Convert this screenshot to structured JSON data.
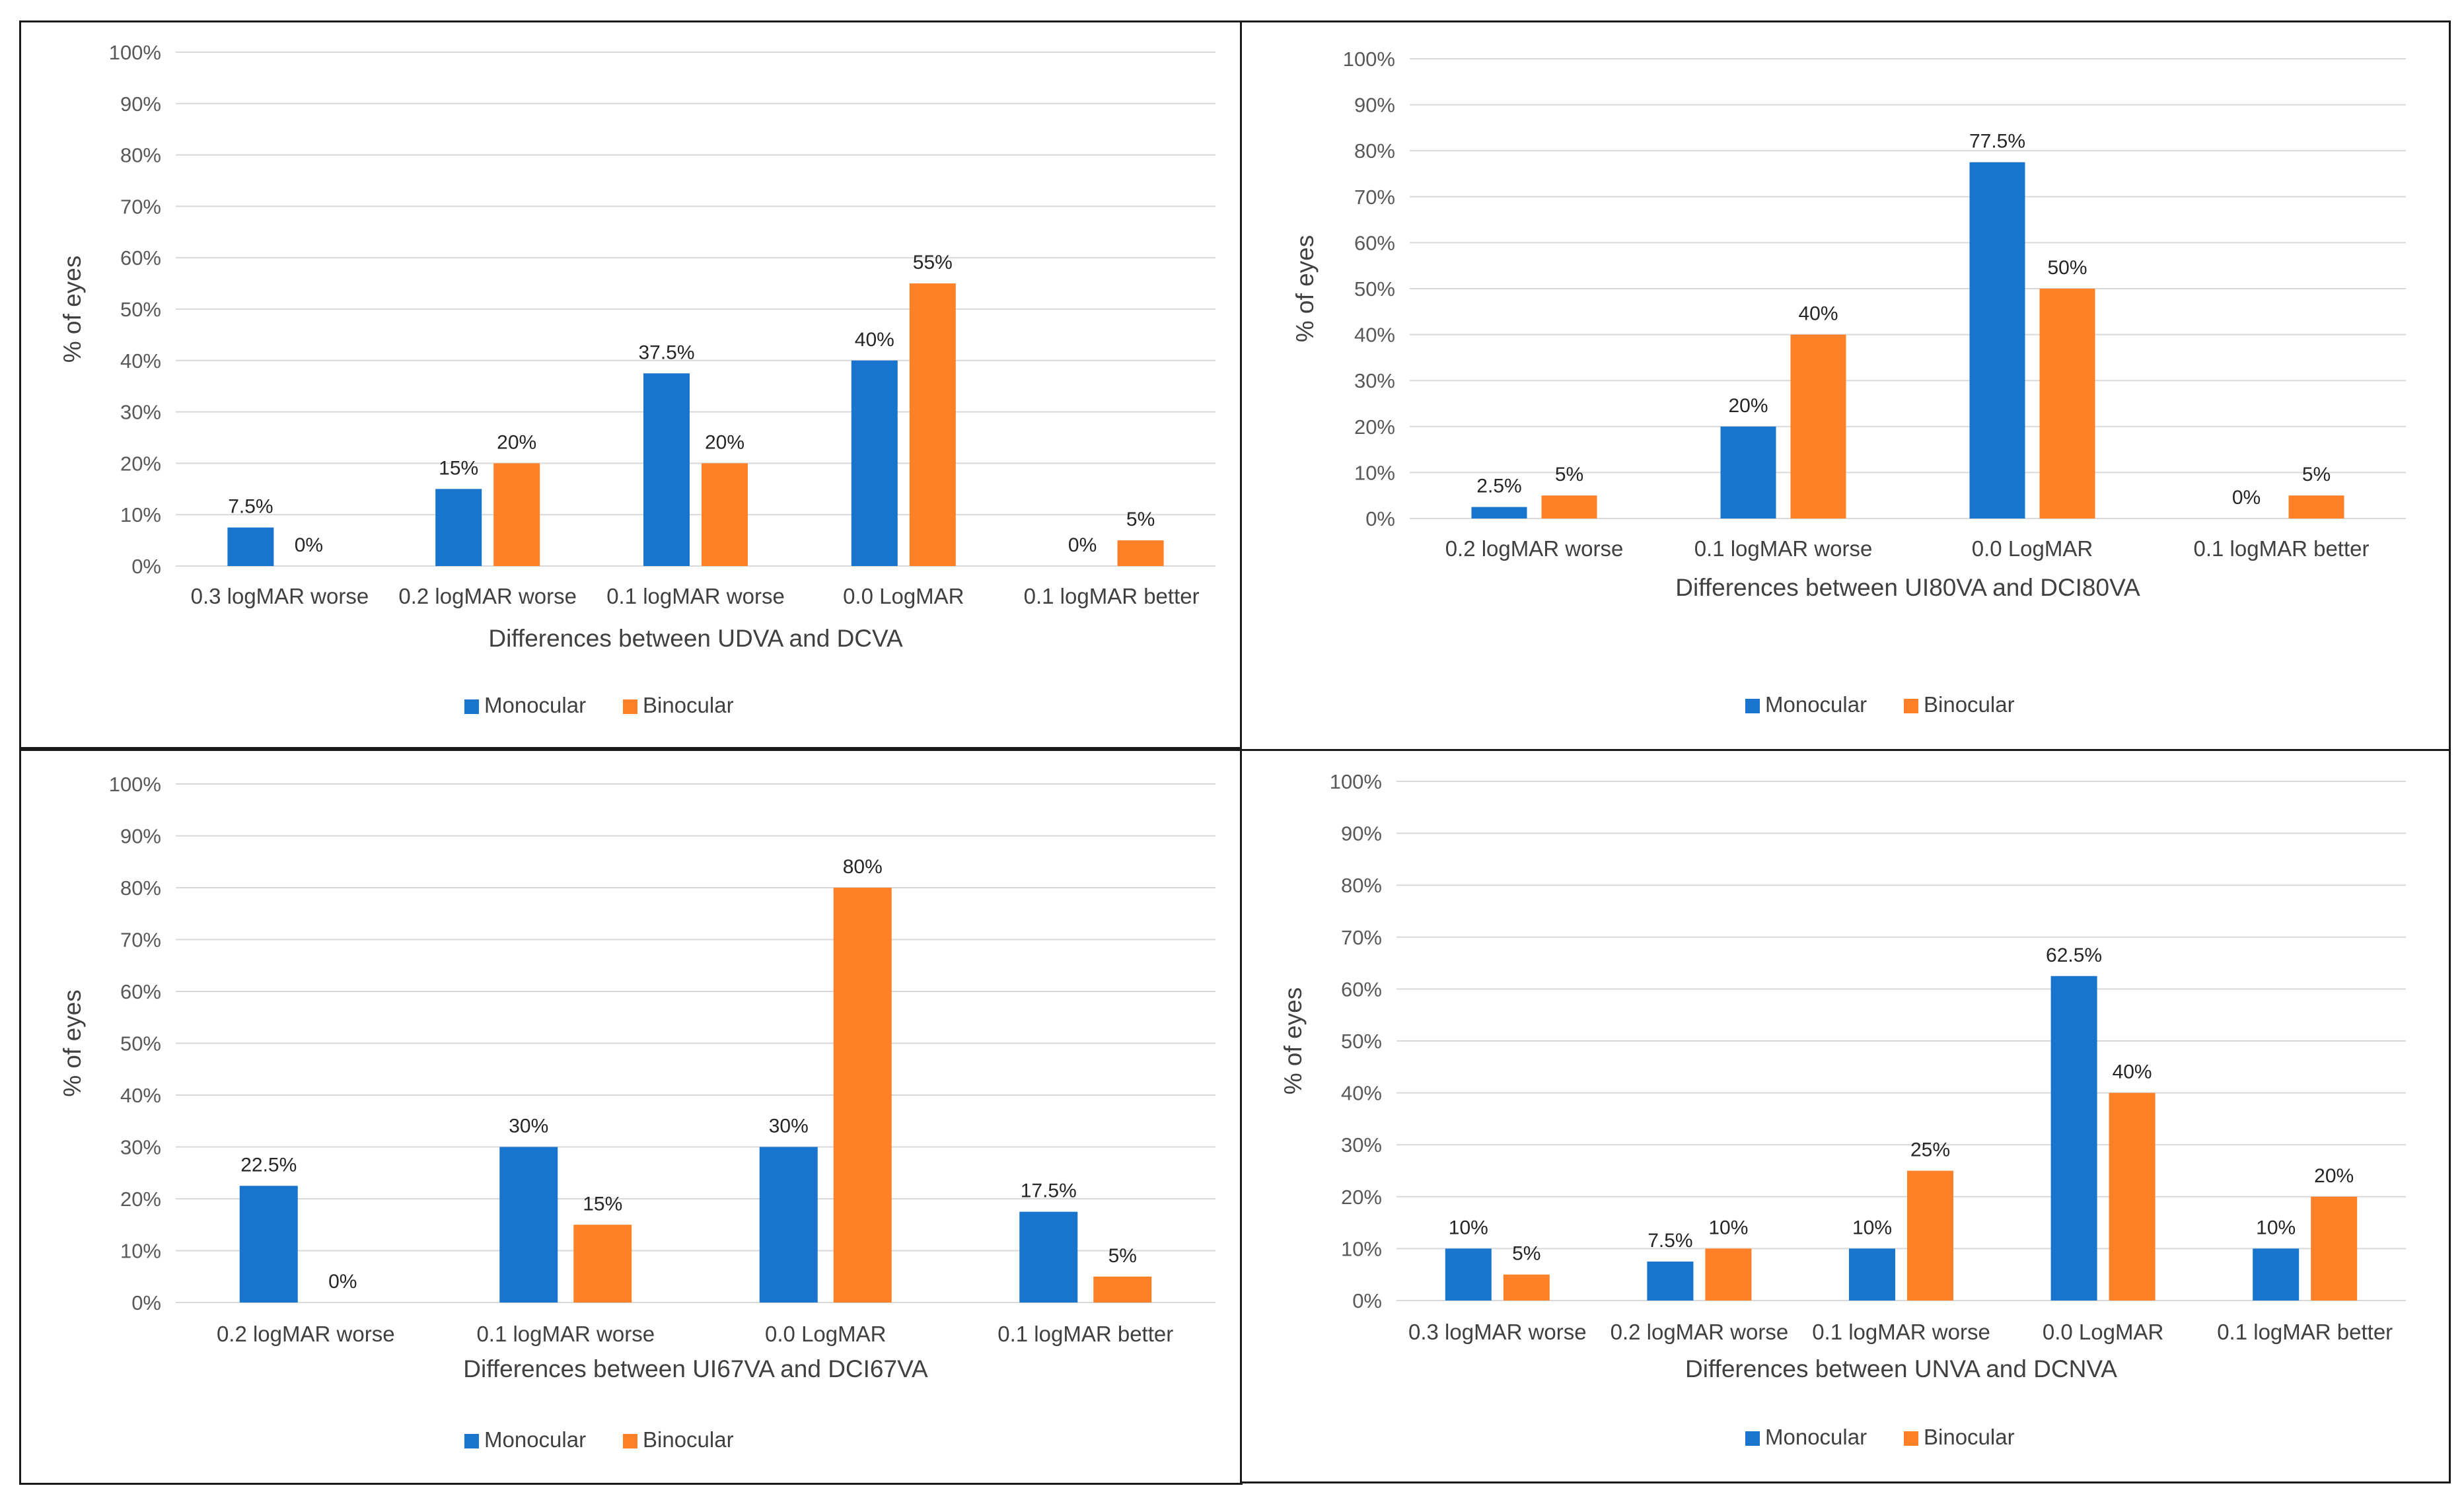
{
  "colors": {
    "monocular": "#1874CD",
    "binocular": "#FF8027"
  },
  "legend": [
    "Monocular",
    "Binocular"
  ],
  "chart_data": [
    {
      "type": "bar",
      "position": "top-left",
      "title": "",
      "xlabel": "Differences between  UDVA and DCVA",
      "ylabel": "% of eyes",
      "ylim": [
        0,
        100
      ],
      "yticks": [
        "0%",
        "10%",
        "20%",
        "30%",
        "40%",
        "50%",
        "60%",
        "70%",
        "80%",
        "90%",
        "100%"
      ],
      "categories": [
        "0.3 logMAR worse",
        "0.2 logMAR worse",
        "0.1 logMAR worse",
        "0.0 LogMAR",
        "0.1 logMAR better"
      ],
      "series": [
        {
          "name": "Monocular",
          "values": [
            7.5,
            15,
            37.5,
            40,
            0
          ],
          "labels": [
            "7.5%",
            "15%",
            "37.5%",
            "40%",
            "0%"
          ]
        },
        {
          "name": "Binocular",
          "values": [
            0,
            20,
            20,
            55,
            5
          ],
          "labels": [
            "0%",
            "20%",
            "20%",
            "55%",
            "5%"
          ]
        }
      ],
      "grid": true,
      "legend_placement": "bottom"
    },
    {
      "type": "bar",
      "position": "top-right",
      "title": "",
      "xlabel": "Differences between UI80VA and DCI80VA",
      "ylabel": "% of eyes",
      "ylim": [
        0,
        100
      ],
      "yticks": [
        "0%",
        "10%",
        "20%",
        "30%",
        "40%",
        "50%",
        "60%",
        "70%",
        "80%",
        "90%",
        "100%"
      ],
      "categories": [
        "0.2 logMAR worse",
        "0.1 logMAR worse",
        "0.0 LogMAR",
        "0.1 logMAR better"
      ],
      "series": [
        {
          "name": "Monocular",
          "values": [
            2.5,
            20,
            77.5,
            0
          ],
          "labels": [
            "2.5%",
            "20%",
            "77.5%",
            "0%"
          ]
        },
        {
          "name": "Binocular",
          "values": [
            5,
            40,
            50,
            5
          ],
          "labels": [
            "5%",
            "40%",
            "50%",
            "5%"
          ]
        }
      ],
      "grid": true,
      "legend_placement": "bottom"
    },
    {
      "type": "bar",
      "position": "bottom-left",
      "title": "",
      "xlabel": "Differences between UI67VA and DCI67VA",
      "ylabel": "% of eyes",
      "ylim": [
        0,
        100
      ],
      "yticks": [
        "0%",
        "10%",
        "20%",
        "30%",
        "40%",
        "50%",
        "60%",
        "70%",
        "80%",
        "90%",
        "100%"
      ],
      "categories": [
        "0.2 logMAR worse",
        "0.1 logMAR worse",
        "0.0 LogMAR",
        "0.1 logMAR better"
      ],
      "series": [
        {
          "name": "Monocular",
          "values": [
            22.5,
            30,
            30,
            17.5
          ],
          "labels": [
            "22.5%",
            "30%",
            "30%",
            "17.5%"
          ]
        },
        {
          "name": "Binocular",
          "values": [
            0,
            15,
            80,
            5
          ],
          "labels": [
            "0%",
            "15%",
            "80%",
            "5%"
          ]
        }
      ],
      "grid": true,
      "legend_placement": "bottom"
    },
    {
      "type": "bar",
      "position": "bottom-right",
      "title": "",
      "xlabel": "Differences between UNVA and DCNVA",
      "ylabel": "% of eyes",
      "ylim": [
        0,
        100
      ],
      "yticks": [
        "0%",
        "10%",
        "20%",
        "30%",
        "40%",
        "50%",
        "60%",
        "70%",
        "80%",
        "90%",
        "100%"
      ],
      "categories": [
        "0.3 logMAR worse",
        "0.2 logMAR worse",
        "0.1 logMAR worse",
        "0.0 LogMAR",
        "0.1 logMAR better"
      ],
      "series": [
        {
          "name": "Monocular",
          "values": [
            10,
            7.5,
            10,
            62.5,
            10
          ],
          "labels": [
            "10%",
            "7.5%",
            "10%",
            "62.5%",
            "10%"
          ]
        },
        {
          "name": "Binocular",
          "values": [
            5,
            10,
            25,
            40,
            20
          ],
          "labels": [
            "5%",
            "10%",
            "25%",
            "40%",
            "20%"
          ]
        }
      ],
      "grid": true,
      "legend_placement": "bottom"
    }
  ]
}
